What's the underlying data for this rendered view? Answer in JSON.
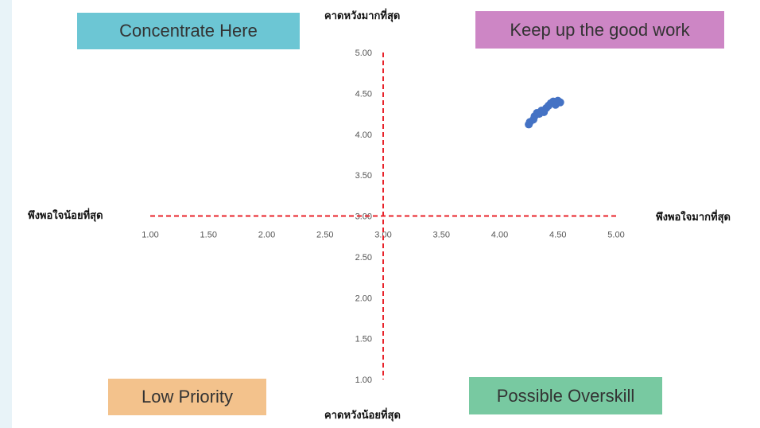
{
  "quadrants": {
    "top_left": "Concentrate Here",
    "top_right": "Keep up the good work",
    "bottom_left": "Low Priority",
    "bottom_right": "Possible Overskill"
  },
  "axis_titles": {
    "top": "คาดหวังมากที่สุด",
    "bottom": "คาดหวังน้อยที่สุด",
    "left": "พึงพอใจน้อยที่สุด",
    "right": "พึงพอใจมากที่สุด"
  },
  "chart_data": {
    "type": "scatter",
    "xlim": [
      1,
      5
    ],
    "ylim": [
      1,
      5
    ],
    "x_ticks": [
      "1.00",
      "1.50",
      "2.00",
      "2.50",
      "3.00",
      "3.50",
      "4.00",
      "4.50",
      "5.00"
    ],
    "y_ticks": [
      "1.00",
      "1.50",
      "2.00",
      "2.50",
      "3.00",
      "3.50",
      "4.00",
      "4.50",
      "5.00"
    ],
    "crosshair": {
      "x": 3.0,
      "y": 3.0,
      "color": "#e8222a",
      "style": "dashed"
    },
    "point_color": "#4472c4",
    "points": [
      {
        "x": 4.25,
        "y": 4.12
      },
      {
        "x": 4.26,
        "y": 4.15
      },
      {
        "x": 4.29,
        "y": 4.18
      },
      {
        "x": 4.3,
        "y": 4.22
      },
      {
        "x": 4.32,
        "y": 4.26
      },
      {
        "x": 4.34,
        "y": 4.25
      },
      {
        "x": 4.36,
        "y": 4.29
      },
      {
        "x": 4.38,
        "y": 4.27
      },
      {
        "x": 4.4,
        "y": 4.32
      },
      {
        "x": 4.42,
        "y": 4.35
      },
      {
        "x": 4.44,
        "y": 4.38
      },
      {
        "x": 4.46,
        "y": 4.4
      },
      {
        "x": 4.48,
        "y": 4.36
      },
      {
        "x": 4.5,
        "y": 4.41
      },
      {
        "x": 4.52,
        "y": 4.39
      }
    ]
  }
}
